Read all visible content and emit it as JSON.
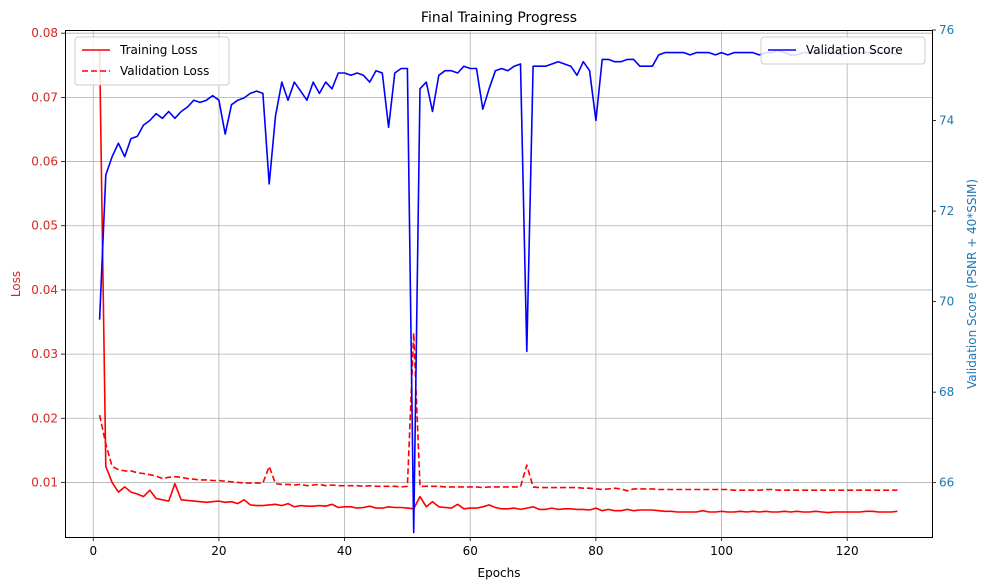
{
  "chart_data": {
    "type": "line",
    "title": "Final Training Progress",
    "xlabel": "Epochs",
    "ylabel_left": "Loss",
    "ylabel_right": "Validation Score (PSNR + 40*SSIM)",
    "xlim": [
      -4.5,
      133.5
    ],
    "ylim_left": [
      0.0015,
      0.0805
    ],
    "ylim_right": [
      64.8,
      76.0
    ],
    "x_ticks": [
      0,
      20,
      40,
      60,
      80,
      100,
      120
    ],
    "y_ticks_left": [
      0.01,
      0.02,
      0.03,
      0.04,
      0.05,
      0.06,
      0.07,
      0.08
    ],
    "y_ticks_right": [
      66,
      68,
      70,
      72,
      74,
      76
    ],
    "grid": true,
    "colors": {
      "training_loss": "#ff0000",
      "validation_loss": "#ff0000",
      "validation_score": "#0000ff",
      "left_axis": "#d62728",
      "right_axis": "#1f77b4"
    },
    "legend_left_position": "upper-left",
    "legend_right_position": "upper-right",
    "series": [
      {
        "name": "Training Loss",
        "axis": "left",
        "style": "solid",
        "x": [
          1,
          2,
          3,
          4,
          5,
          6,
          7,
          8,
          9,
          10,
          11,
          12,
          13,
          14,
          15,
          16,
          17,
          18,
          19,
          20,
          21,
          22,
          23,
          24,
          25,
          26,
          27,
          28,
          29,
          30,
          31,
          32,
          33,
          34,
          35,
          36,
          37,
          38,
          39,
          40,
          41,
          42,
          43,
          44,
          45,
          46,
          47,
          48,
          49,
          50,
          51,
          52,
          53,
          54,
          55,
          56,
          57,
          58,
          59,
          60,
          61,
          62,
          63,
          64,
          65,
          66,
          67,
          68,
          69,
          70,
          71,
          72,
          73,
          74,
          75,
          76,
          77,
          78,
          79,
          80,
          81,
          82,
          83,
          84,
          85,
          86,
          87,
          88,
          89,
          90,
          91,
          92,
          93,
          94,
          95,
          96,
          97,
          98,
          99,
          100,
          101,
          102,
          103,
          104,
          105,
          106,
          107,
          108,
          109,
          110,
          111,
          112,
          113,
          114,
          115,
          116,
          117,
          118,
          119,
          120,
          121,
          122,
          123,
          124,
          125,
          126,
          127,
          128
        ],
        "values": [
          0.0775,
          0.0125,
          0.01,
          0.0085,
          0.0093,
          0.0085,
          0.0082,
          0.0078,
          0.0088,
          0.0075,
          0.0073,
          0.0071,
          0.0098,
          0.0073,
          0.0072,
          0.0071,
          0.007,
          0.0069,
          0.007,
          0.0071,
          0.0069,
          0.007,
          0.0067,
          0.0073,
          0.0065,
          0.0064,
          0.0064,
          0.0065,
          0.0066,
          0.0064,
          0.0067,
          0.0062,
          0.0064,
          0.0063,
          0.0063,
          0.0064,
          0.0063,
          0.0066,
          0.0061,
          0.0062,
          0.0062,
          0.006,
          0.0061,
          0.0063,
          0.006,
          0.006,
          0.0062,
          0.0061,
          0.0061,
          0.006,
          0.0059,
          0.0078,
          0.0062,
          0.007,
          0.0062,
          0.0061,
          0.006,
          0.0066,
          0.0059,
          0.006,
          0.006,
          0.0062,
          0.0065,
          0.0061,
          0.0059,
          0.0059,
          0.006,
          0.0058,
          0.006,
          0.0062,
          0.0058,
          0.0058,
          0.006,
          0.0058,
          0.0059,
          0.0059,
          0.0058,
          0.0058,
          0.0057,
          0.006,
          0.0056,
          0.0058,
          0.0056,
          0.0056,
          0.0058,
          0.0056,
          0.0057,
          0.0057,
          0.0057,
          0.0056,
          0.0055,
          0.0055,
          0.0054,
          0.0054,
          0.0054,
          0.0054,
          0.0056,
          0.0054,
          0.0054,
          0.0055,
          0.0054,
          0.0054,
          0.0055,
          0.0054,
          0.0055,
          0.0054,
          0.0055,
          0.0054,
          0.0054,
          0.0055,
          0.0054,
          0.0055,
          0.0054,
          0.0054,
          0.0055,
          0.0054,
          0.0053,
          0.0054,
          0.0054,
          0.0054,
          0.0054,
          0.0054,
          0.0055,
          0.0055,
          0.0054,
          0.0054,
          0.0054,
          0.0055
        ]
      },
      {
        "name": "Validation Loss",
        "axis": "left",
        "style": "dashed",
        "x": [
          1,
          2,
          3,
          4,
          5,
          6,
          7,
          8,
          9,
          10,
          11,
          12,
          13,
          14,
          15,
          16,
          17,
          18,
          19,
          20,
          21,
          22,
          23,
          24,
          25,
          26,
          27,
          28,
          29,
          30,
          31,
          32,
          33,
          34,
          35,
          36,
          37,
          38,
          39,
          40,
          41,
          42,
          43,
          44,
          45,
          46,
          47,
          48,
          49,
          50,
          51,
          52,
          53,
          54,
          55,
          56,
          57,
          58,
          59,
          60,
          61,
          62,
          63,
          64,
          65,
          66,
          67,
          68,
          69,
          70,
          71,
          72,
          73,
          74,
          75,
          76,
          77,
          78,
          79,
          80,
          81,
          82,
          83,
          84,
          85,
          86,
          87,
          88,
          89,
          90,
          91,
          92,
          93,
          94,
          95,
          96,
          97,
          98,
          99,
          100,
          101,
          102,
          103,
          104,
          105,
          106,
          107,
          108,
          109,
          110,
          111,
          112,
          113,
          114,
          115,
          116,
          117,
          118,
          119,
          120,
          121,
          122,
          123,
          124,
          125,
          126,
          127,
          128
        ],
        "values": [
          0.0205,
          0.016,
          0.0125,
          0.012,
          0.0118,
          0.0118,
          0.0115,
          0.0114,
          0.0112,
          0.011,
          0.0106,
          0.0108,
          0.0109,
          0.0108,
          0.0106,
          0.0105,
          0.0104,
          0.0104,
          0.0103,
          0.0103,
          0.0102,
          0.0101,
          0.01,
          0.0099,
          0.0099,
          0.0099,
          0.0099,
          0.0125,
          0.0098,
          0.0097,
          0.0097,
          0.0096,
          0.0097,
          0.0095,
          0.0096,
          0.0097,
          0.0095,
          0.0096,
          0.0095,
          0.0095,
          0.0095,
          0.0095,
          0.0094,
          0.0095,
          0.0094,
          0.0094,
          0.0094,
          0.0094,
          0.0093,
          0.0094,
          0.0333,
          0.0094,
          0.0094,
          0.0094,
          0.0094,
          0.0093,
          0.0093,
          0.0093,
          0.0093,
          0.0093,
          0.0093,
          0.0092,
          0.0093,
          0.0093,
          0.0093,
          0.0093,
          0.0093,
          0.0093,
          0.0127,
          0.0093,
          0.0092,
          0.0092,
          0.0092,
          0.0092,
          0.0092,
          0.0092,
          0.0092,
          0.0091,
          0.0091,
          0.009,
          0.0089,
          0.009,
          0.0091,
          0.009,
          0.0087,
          0.009,
          0.009,
          0.009,
          0.009,
          0.0089,
          0.0089,
          0.0089,
          0.0089,
          0.0089,
          0.0089,
          0.0089,
          0.0089,
          0.0089,
          0.0089,
          0.0089,
          0.0089,
          0.0088,
          0.0088,
          0.0088,
          0.0088,
          0.0088,
          0.0089,
          0.0089,
          0.0088,
          0.0088,
          0.0088,
          0.0088,
          0.0088,
          0.0088,
          0.0088,
          0.0088,
          0.0088,
          0.0088,
          0.0088,
          0.0088,
          0.0088,
          0.0088,
          0.0088,
          0.0088,
          0.0088,
          0.0088,
          0.0088,
          0.0088
        ]
      },
      {
        "name": "Validation Score",
        "axis": "right",
        "style": "solid",
        "x": [
          1,
          2,
          3,
          4,
          5,
          6,
          7,
          8,
          9,
          10,
          11,
          12,
          13,
          14,
          15,
          16,
          17,
          18,
          19,
          20,
          21,
          22,
          23,
          24,
          25,
          26,
          27,
          28,
          29,
          30,
          31,
          32,
          33,
          34,
          35,
          36,
          37,
          38,
          39,
          40,
          41,
          42,
          43,
          44,
          45,
          46,
          47,
          48,
          49,
          50,
          51,
          52,
          53,
          54,
          55,
          56,
          57,
          58,
          59,
          60,
          61,
          62,
          63,
          64,
          65,
          66,
          67,
          68,
          69,
          70,
          71,
          72,
          73,
          74,
          75,
          76,
          77,
          78,
          79,
          80,
          81,
          82,
          83,
          84,
          85,
          86,
          87,
          88,
          89,
          90,
          91,
          92,
          93,
          94,
          95,
          96,
          97,
          98,
          99,
          100,
          101,
          102,
          103,
          104,
          105,
          106,
          107,
          108,
          109,
          110,
          111,
          112,
          113,
          114,
          115,
          116,
          117,
          118,
          119,
          120,
          121,
          122,
          123,
          124,
          125,
          126,
          127,
          128
        ],
        "values": [
          69.6,
          72.8,
          73.2,
          73.5,
          73.2,
          73.6,
          73.65,
          73.9,
          74.0,
          74.15,
          74.05,
          74.2,
          74.05,
          74.2,
          74.3,
          74.45,
          74.4,
          74.45,
          74.55,
          74.45,
          73.7,
          74.35,
          74.45,
          74.5,
          74.6,
          74.65,
          74.6,
          72.6,
          74.1,
          74.85,
          74.45,
          74.85,
          74.65,
          74.45,
          74.85,
          74.6,
          74.85,
          74.7,
          75.05,
          75.05,
          75.0,
          75.05,
          75.0,
          74.85,
          75.1,
          75.05,
          73.85,
          75.05,
          75.15,
          75.15,
          64.9,
          74.7,
          74.85,
          74.2,
          75.0,
          75.1,
          75.1,
          75.05,
          75.2,
          75.15,
          75.15,
          74.25,
          74.7,
          75.1,
          75.15,
          75.1,
          75.2,
          75.25,
          68.9,
          75.2,
          75.2,
          75.2,
          75.25,
          75.3,
          75.25,
          75.2,
          75.0,
          75.3,
          75.1,
          74.0,
          75.35,
          75.35,
          75.3,
          75.3,
          75.35,
          75.35,
          75.2,
          75.2,
          75.2,
          75.45,
          75.5,
          75.5,
          75.5,
          75.5,
          75.45,
          75.5,
          75.5,
          75.5,
          75.45,
          75.5,
          75.45,
          75.5,
          75.5,
          75.5,
          75.5,
          75.45,
          75.5,
          75.5,
          75.55,
          75.5,
          75.45,
          75.45,
          75.5,
          75.5,
          75.5,
          75.5,
          75.5,
          75.5,
          75.45,
          75.5,
          75.5,
          75.5,
          75.5,
          75.5,
          75.5,
          75.5,
          75.5,
          75.45
        ]
      }
    ]
  }
}
